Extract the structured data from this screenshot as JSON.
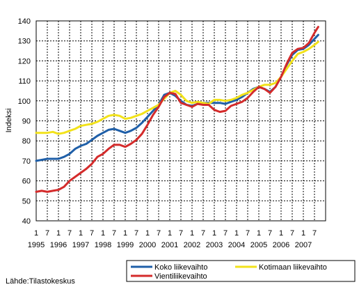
{
  "source_note": "Lähde:Tilastokeskus",
  "chart_data": {
    "type": "line",
    "title": "",
    "xlabel": "",
    "ylabel": "Indeksi",
    "ylim": [
      40,
      140
    ],
    "yticks": [
      40,
      50,
      60,
      70,
      80,
      90,
      100,
      110,
      120,
      130,
      140
    ],
    "xlim": [
      1995.0,
      2008.0
    ],
    "x_month_ticks": [
      "1",
      "7",
      "1",
      "7",
      "1",
      "7",
      "1",
      "7",
      "1",
      "7",
      "1",
      "7",
      "1",
      "7",
      "1",
      "7",
      "1",
      "7",
      "1",
      "7",
      "1",
      "7",
      "1",
      "7",
      "1",
      "7"
    ],
    "x_year_labels": [
      "1995",
      "1996",
      "1997",
      "1998",
      "1999",
      "2000",
      "2001",
      "2002",
      "2003",
      "2004",
      "2005",
      "2006",
      "2007"
    ],
    "grid": true,
    "legend_position": "bottom",
    "series": [
      {
        "name": "Koko liikevaihto",
        "color": "#1f5fa8",
        "points": [
          [
            1995.0,
            70
          ],
          [
            1995.25,
            70.5
          ],
          [
            1995.5,
            71
          ],
          [
            1995.75,
            71
          ],
          [
            1996.0,
            71
          ],
          [
            1996.25,
            72
          ],
          [
            1996.5,
            73.5
          ],
          [
            1996.75,
            76
          ],
          [
            1997.0,
            77.5
          ],
          [
            1997.25,
            78.5
          ],
          [
            1997.5,
            80.5
          ],
          [
            1997.75,
            82.5
          ],
          [
            1998.0,
            84
          ],
          [
            1998.25,
            85.5
          ],
          [
            1998.5,
            86
          ],
          [
            1998.75,
            85
          ],
          [
            1999.0,
            84
          ],
          [
            1999.25,
            85
          ],
          [
            1999.5,
            86.5
          ],
          [
            1999.75,
            89
          ],
          [
            2000.0,
            92
          ],
          [
            2000.25,
            95
          ],
          [
            2000.5,
            98
          ],
          [
            2000.75,
            103
          ],
          [
            2001.0,
            104
          ],
          [
            2001.25,
            102.5
          ],
          [
            2001.5,
            100
          ],
          [
            2001.75,
            98
          ],
          [
            2002.0,
            97.5
          ],
          [
            2002.25,
            98.5
          ],
          [
            2002.5,
            99
          ],
          [
            2002.75,
            99
          ],
          [
            2003.0,
            99
          ],
          [
            2003.25,
            99
          ],
          [
            2003.5,
            98.5
          ],
          [
            2003.75,
            99.5
          ],
          [
            2004.0,
            100.5
          ],
          [
            2004.25,
            102
          ],
          [
            2004.5,
            104
          ],
          [
            2004.75,
            106
          ],
          [
            2005.0,
            107
          ],
          [
            2005.25,
            106
          ],
          [
            2005.5,
            104.5
          ],
          [
            2005.75,
            107
          ],
          [
            2006.0,
            112
          ],
          [
            2006.25,
            118
          ],
          [
            2006.5,
            123
          ],
          [
            2006.75,
            125.5
          ],
          [
            2007.0,
            126
          ],
          [
            2007.25,
            128
          ],
          [
            2007.5,
            131
          ],
          [
            2007.67,
            133
          ]
        ]
      },
      {
        "name": "Kotimaan liikevaihto",
        "color": "#f2e21a",
        "points": [
          [
            1995.0,
            84
          ],
          [
            1995.25,
            84
          ],
          [
            1995.5,
            84
          ],
          [
            1995.75,
            84.5
          ],
          [
            1996.0,
            83.5
          ],
          [
            1996.25,
            84
          ],
          [
            1996.5,
            85
          ],
          [
            1996.75,
            86
          ],
          [
            1997.0,
            87.5
          ],
          [
            1997.25,
            88
          ],
          [
            1997.5,
            88.5
          ],
          [
            1997.75,
            89.5
          ],
          [
            1998.0,
            91
          ],
          [
            1998.25,
            92.5
          ],
          [
            1998.5,
            93
          ],
          [
            1998.75,
            92.5
          ],
          [
            1999.0,
            91
          ],
          [
            1999.25,
            91.5
          ],
          [
            1999.5,
            92.5
          ],
          [
            1999.75,
            93.5
          ],
          [
            2000.0,
            95
          ],
          [
            2000.25,
            96.5
          ],
          [
            2000.5,
            98
          ],
          [
            2000.75,
            101
          ],
          [
            2001.0,
            104
          ],
          [
            2001.25,
            105
          ],
          [
            2001.5,
            103
          ],
          [
            2001.75,
            100
          ],
          [
            2002.0,
            99
          ],
          [
            2002.25,
            99.5
          ],
          [
            2002.5,
            99
          ],
          [
            2002.75,
            98.5
          ],
          [
            2003.0,
            100.5
          ],
          [
            2003.25,
            100.5
          ],
          [
            2003.5,
            100
          ],
          [
            2003.75,
            100.5
          ],
          [
            2004.0,
            101.5
          ],
          [
            2004.25,
            103
          ],
          [
            2004.5,
            104
          ],
          [
            2004.75,
            105.5
          ],
          [
            2005.0,
            107
          ],
          [
            2005.25,
            108
          ],
          [
            2005.5,
            108
          ],
          [
            2005.75,
            109
          ],
          [
            2006.0,
            112
          ],
          [
            2006.25,
            116
          ],
          [
            2006.5,
            120
          ],
          [
            2006.75,
            123.5
          ],
          [
            2007.0,
            124.5
          ],
          [
            2007.25,
            126
          ],
          [
            2007.5,
            128
          ],
          [
            2007.67,
            129.5
          ]
        ]
      },
      {
        "name": "Vientiliikevaihto",
        "color": "#d42b2b",
        "points": [
          [
            1995.0,
            54.5
          ],
          [
            1995.25,
            55
          ],
          [
            1995.5,
            54.5
          ],
          [
            1995.75,
            55
          ],
          [
            1996.0,
            55.5
          ],
          [
            1996.25,
            57
          ],
          [
            1996.5,
            60
          ],
          [
            1996.75,
            62
          ],
          [
            1997.0,
            64
          ],
          [
            1997.25,
            66
          ],
          [
            1997.5,
            68.5
          ],
          [
            1997.75,
            72
          ],
          [
            1998.0,
            73.5
          ],
          [
            1998.25,
            76
          ],
          [
            1998.5,
            78
          ],
          [
            1998.75,
            78
          ],
          [
            1999.0,
            77
          ],
          [
            1999.25,
            78.5
          ],
          [
            1999.5,
            80.5
          ],
          [
            1999.75,
            83.5
          ],
          [
            2000.0,
            88
          ],
          [
            2000.25,
            93
          ],
          [
            2000.5,
            97
          ],
          [
            2000.75,
            102
          ],
          [
            2001.0,
            104
          ],
          [
            2001.25,
            103.5
          ],
          [
            2001.5,
            99
          ],
          [
            2001.75,
            98
          ],
          [
            2002.0,
            97
          ],
          [
            2002.25,
            98.5
          ],
          [
            2002.5,
            98
          ],
          [
            2002.75,
            98
          ],
          [
            2003.0,
            95.5
          ],
          [
            2003.25,
            94.5
          ],
          [
            2003.5,
            95
          ],
          [
            2003.75,
            97.5
          ],
          [
            2004.0,
            98.5
          ],
          [
            2004.25,
            99.5
          ],
          [
            2004.5,
            101.5
          ],
          [
            2004.75,
            104.5
          ],
          [
            2005.0,
            107
          ],
          [
            2005.25,
            106
          ],
          [
            2005.5,
            104
          ],
          [
            2005.75,
            107
          ],
          [
            2006.0,
            112
          ],
          [
            2006.25,
            118.5
          ],
          [
            2006.5,
            124
          ],
          [
            2006.75,
            126
          ],
          [
            2007.0,
            126.5
          ],
          [
            2007.25,
            129
          ],
          [
            2007.5,
            134
          ],
          [
            2007.67,
            137
          ]
        ]
      }
    ]
  }
}
